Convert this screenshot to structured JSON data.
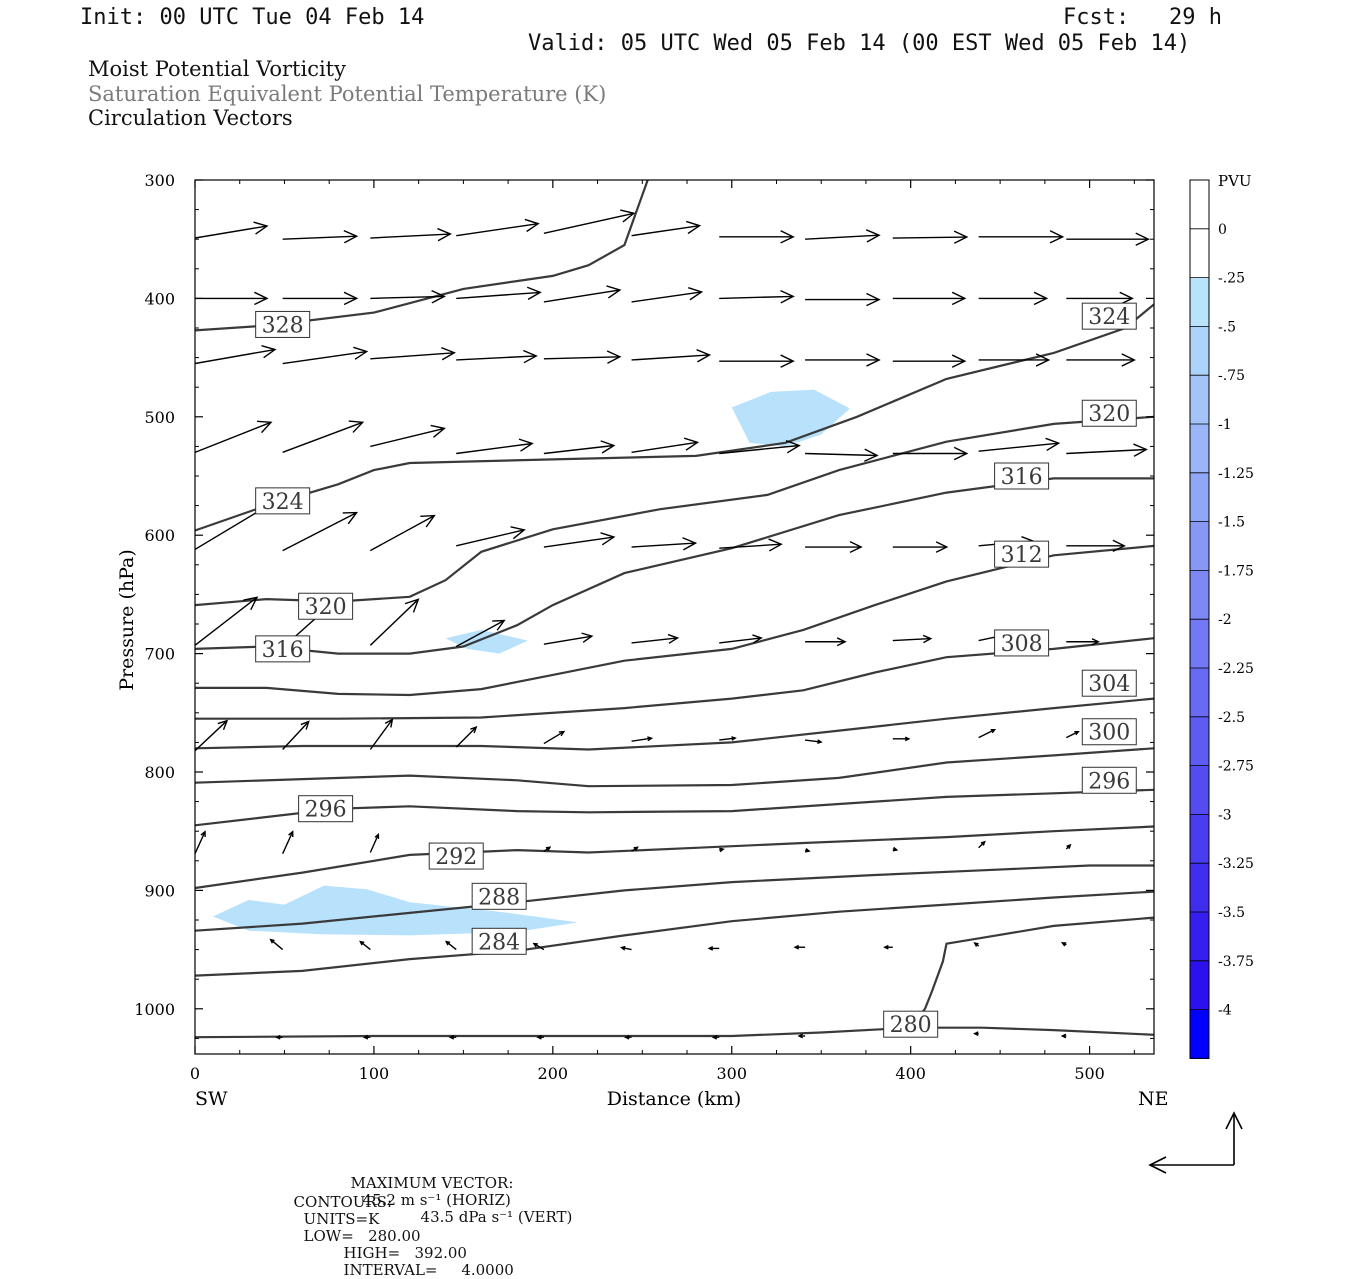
{
  "header": {
    "init": "Init: 00 UTC Tue 04 Feb 14",
    "fcst": "Fcst:   29 h",
    "valid": "Valid: 05 UTC Wed 05 Feb 14 (00 EST Wed 05 Feb 14)",
    "title1": "Moist Potential Vorticity",
    "title2": "Saturation Equivalent Potential Temperature (K)",
    "title3": "Circulation Vectors"
  },
  "footer": {
    "max_vector_label": "MAXIMUM VECTOR:",
    "max_vector_horiz": "45.2 m s⁻¹ (HORIZ)",
    "max_vector_vert": "43.5 dPa s⁻¹ (VERT)",
    "contours_label": "CONTOURS:",
    "contours_units": "UNITS=K",
    "contours_low": "LOW=   280.00",
    "contours_high": "HIGH=   392.00",
    "contours_interval": "INTERVAL=     4.0000"
  },
  "colors": {
    "contour": "#3a3a3a",
    "mpv_fill": "#b8e2fb",
    "axis": "#000000"
  },
  "chart_data": {
    "type": "cross-section",
    "xlabel": "Distance (km)",
    "ylabel": "Pressure (hPa)",
    "x_left_label": "SW",
    "x_right_label": "NE",
    "xlim": [
      0,
      536
    ],
    "ylim_pressure": [
      1040,
      300
    ],
    "x_ticks": [
      0,
      100,
      200,
      300,
      400,
      500
    ],
    "y_ticks": [
      300,
      400,
      500,
      600,
      700,
      800,
      900,
      1000
    ],
    "contour_field": "Saturation Equivalent Potential Temperature (K)",
    "shaded_field": "Moist Potential Vorticity",
    "contour_labels": [
      {
        "value": "328",
        "x": 49,
        "p": 422
      },
      {
        "value": "324",
        "x": 49,
        "p": 571
      },
      {
        "value": "320",
        "x": 73,
        "p": 660
      },
      {
        "value": "316",
        "x": 49,
        "p": 696
      },
      {
        "value": "296",
        "x": 73,
        "p": 831
      },
      {
        "value": "292",
        "x": 146,
        "p": 871
      },
      {
        "value": "288",
        "x": 170,
        "p": 905
      },
      {
        "value": "284",
        "x": 170,
        "p": 943
      },
      {
        "value": "280",
        "x": 400,
        "p": 1013
      },
      {
        "value": "324",
        "x": 511,
        "p": 415
      },
      {
        "value": "320",
        "x": 511,
        "p": 497
      },
      {
        "value": "316",
        "x": 462,
        "p": 550
      },
      {
        "value": "312",
        "x": 462,
        "p": 616
      },
      {
        "value": "308",
        "x": 462,
        "p": 691
      },
      {
        "value": "304",
        "x": 511,
        "p": 725
      },
      {
        "value": "300",
        "x": 511,
        "p": 766
      },
      {
        "value": "296",
        "x": 511,
        "p": 807
      }
    ],
    "colorbar": {
      "title": "PVU",
      "labels": [
        "0",
        "-.25",
        "-.5",
        "-.75",
        "-1",
        "-1.25",
        "-1.5",
        "-1.75",
        "-2",
        "-2.25",
        "-2.5",
        "-2.75",
        "-3",
        "-3.25",
        "-3.5",
        "-3.75",
        "-4"
      ],
      "colors": [
        "#ffffff",
        "#ffffff",
        "#b9e3fb",
        "#aed3fa",
        "#a4c4f9",
        "#9ab5f8",
        "#90a6f7",
        "#8697f6",
        "#7c88f5",
        "#7279f4",
        "#686af3",
        "#5e5bf2",
        "#544cf1",
        "#4a3df0",
        "#402eef",
        "#361fee",
        "#2c10ed",
        "#0000ff"
      ]
    },
    "mpv_regions": [
      {
        "name": "upper",
        "points": [
          [
            300,
            492
          ],
          [
            322,
            479
          ],
          [
            346,
            477
          ],
          [
            366,
            493
          ],
          [
            350,
            515
          ],
          [
            330,
            525
          ],
          [
            310,
            522
          ]
        ]
      },
      {
        "name": "middle",
        "points": [
          [
            140,
            687
          ],
          [
            160,
            680
          ],
          [
            186,
            689
          ],
          [
            170,
            700
          ],
          [
            152,
            696
          ]
        ]
      },
      {
        "name": "lower",
        "points": [
          [
            10,
            922
          ],
          [
            30,
            908
          ],
          [
            50,
            912
          ],
          [
            72,
            896
          ],
          [
            96,
            899
          ],
          [
            120,
            910
          ],
          [
            170,
            918
          ],
          [
            214,
            927
          ],
          [
            180,
            935
          ],
          [
            120,
            938
          ],
          [
            70,
            937
          ],
          [
            30,
            934
          ]
        ]
      }
    ]
  }
}
